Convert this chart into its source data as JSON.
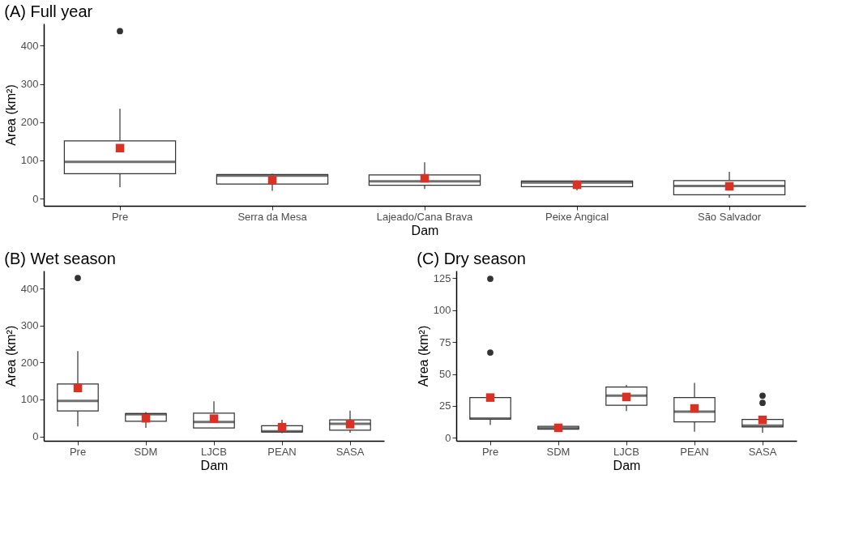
{
  "chart_data": [
    {
      "type": "box",
      "title": "(A) Full year",
      "xlabel": "Dam",
      "ylabel": "Area  (km²)",
      "categories": [
        "Pre",
        "Serra da Mesa",
        "Lajeado/Cana Brava",
        "Peixe Angical",
        "São Salvador"
      ],
      "ylim": [
        -19,
        458
      ],
      "yticks": [
        0,
        100,
        200,
        300,
        400
      ],
      "grid": false,
      "boxes": [
        {
          "low": 30,
          "q1": 65,
          "median": 96,
          "q3": 151,
          "high": 235,
          "mean": 132,
          "outliers": [
            438
          ]
        },
        {
          "low": 20,
          "q1": 38,
          "median": 60,
          "q3": 63,
          "high": 65,
          "mean": 48
        },
        {
          "low": 25,
          "q1": 35,
          "median": 45,
          "q3": 62,
          "high": 95,
          "mean": 53
        },
        {
          "low": 22,
          "q1": 31,
          "median": 42,
          "q3": 46,
          "high": 47,
          "mean": 36
        },
        {
          "low": 2,
          "q1": 10,
          "median": 33,
          "q3": 47,
          "high": 70,
          "mean": 32
        }
      ]
    },
    {
      "type": "box",
      "title": "(B) Wet season",
      "xlabel": "Dam",
      "ylabel": "Area  (km²)",
      "categories": [
        "Pre",
        "SDM",
        "LJCB",
        "PEAN",
        "SASA"
      ],
      "ylim": [
        -12,
        449
      ],
      "yticks": [
        0,
        100,
        200,
        300,
        400
      ],
      "grid": false,
      "boxes": [
        {
          "low": 27,
          "q1": 69,
          "median": 96,
          "q3": 142,
          "high": 231,
          "mean": 131,
          "outliers": [
            429
          ]
        },
        {
          "low": 23,
          "q1": 41,
          "median": 60,
          "q3": 62,
          "high": 66,
          "mean": 49
        },
        {
          "low": 22,
          "q1": 23,
          "median": 39,
          "q3": 63,
          "high": 95,
          "mean": 48
        },
        {
          "low": 9,
          "q1": 12,
          "median": 14,
          "q3": 29,
          "high": 45,
          "mean": 25
        },
        {
          "low": 10,
          "q1": 17,
          "median": 34,
          "q3": 45,
          "high": 70,
          "mean": 33
        }
      ]
    },
    {
      "type": "box",
      "title": "(C) Dry season",
      "xlabel": "Dam",
      "ylabel": "Area  (km²)",
      "categories": [
        "Pre",
        "SDM",
        "LJCB",
        "PEAN",
        "SASA"
      ],
      "ylim": [
        -2.4,
        131
      ],
      "yticks": [
        0,
        25,
        50,
        75,
        100,
        125
      ],
      "grid": false,
      "boxes": [
        {
          "low": 10,
          "q1": 14.6,
          "median": 15,
          "q3": 31.5,
          "high": 31.5,
          "mean": 31.5,
          "outliers": [
            66.8,
            124.6
          ]
        },
        {
          "low": 6.5,
          "q1": 6.7,
          "median": 7.5,
          "q3": 9,
          "high": 9.5,
          "mean": 7.8
        },
        {
          "low": 21,
          "q1": 25.5,
          "median": 33,
          "q3": 39.8,
          "high": 41.5,
          "mean": 32
        },
        {
          "low": 4.7,
          "q1": 12.5,
          "median": 20.5,
          "q3": 31.5,
          "high": 43,
          "mean": 23
        },
        {
          "low": 4,
          "q1": 8.5,
          "median": 9.5,
          "q3": 14.4,
          "high": 14.4,
          "mean": 14,
          "outliers": [
            27.3,
            33
          ]
        }
      ]
    }
  ]
}
